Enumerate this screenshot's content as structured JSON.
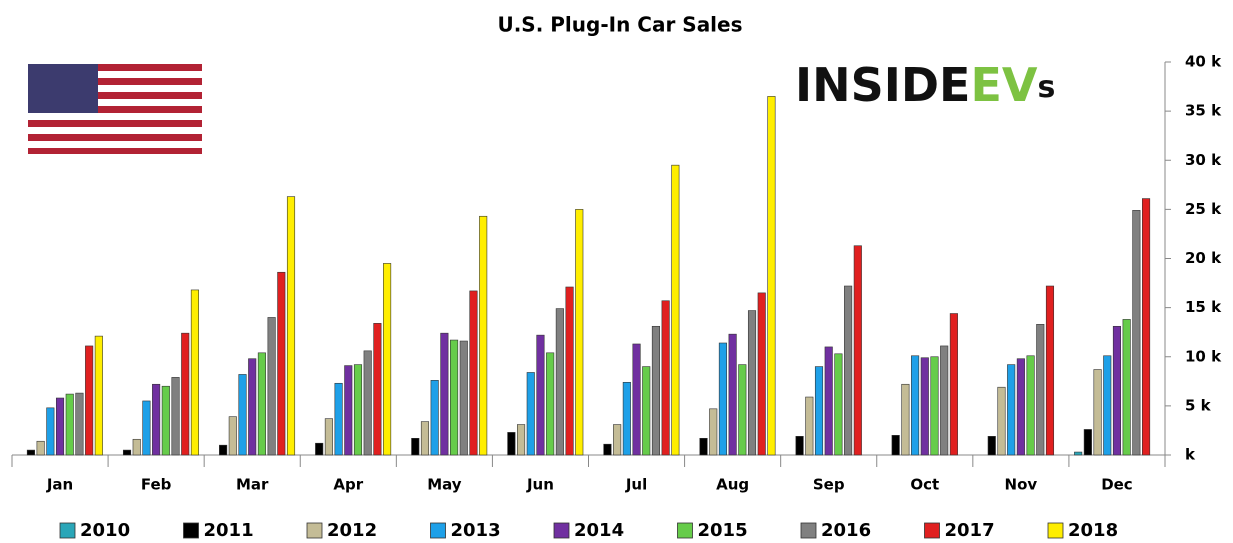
{
  "chart_data": {
    "type": "bar",
    "title": "U.S. Plug-In Car Sales",
    "logo": [
      "INSIDE",
      "EV",
      "s"
    ],
    "categories": [
      "Jan",
      "Feb",
      "Mar",
      "Apr",
      "May",
      "Jun",
      "Jul",
      "Aug",
      "Sep",
      "Oct",
      "Nov",
      "Dec"
    ],
    "series": [
      {
        "name": "2010",
        "color": "#2aa6b8",
        "values": [
          0,
          0,
          0,
          0,
          0,
          0,
          0,
          0,
          0,
          0,
          0,
          0.3
        ]
      },
      {
        "name": "2011",
        "color": "#000000",
        "values": [
          0.5,
          0.5,
          1.0,
          1.2,
          1.7,
          2.3,
          1.1,
          1.7,
          1.9,
          2.0,
          1.9,
          2.6
        ]
      },
      {
        "name": "2012",
        "color": "#c4bc96",
        "values": [
          1.4,
          1.6,
          3.9,
          3.7,
          3.4,
          3.1,
          3.1,
          4.7,
          5.9,
          7.2,
          6.9,
          8.7
        ]
      },
      {
        "name": "2013",
        "color": "#1ea0e8",
        "values": [
          4.8,
          5.5,
          8.2,
          7.3,
          7.6,
          8.4,
          7.4,
          11.4,
          9.0,
          10.1,
          9.2,
          10.1
        ]
      },
      {
        "name": "2014",
        "color": "#7030a0",
        "values": [
          5.8,
          7.2,
          9.8,
          9.1,
          12.4,
          12.2,
          11.3,
          12.3,
          11.0,
          9.9,
          9.8,
          13.1
        ]
      },
      {
        "name": "2015",
        "color": "#66cc4a",
        "values": [
          6.2,
          7.0,
          10.4,
          9.2,
          11.7,
          10.4,
          9.0,
          9.2,
          10.3,
          10.0,
          10.1,
          13.8
        ]
      },
      {
        "name": "2016",
        "color": "#808080",
        "values": [
          6.3,
          7.9,
          14.0,
          10.6,
          11.6,
          14.9,
          13.1,
          14.7,
          17.2,
          11.1,
          13.3,
          24.9
        ]
      },
      {
        "name": "2017",
        "color": "#e02020",
        "values": [
          11.1,
          12.4,
          18.6,
          13.4,
          16.7,
          17.1,
          15.7,
          16.5,
          21.3,
          14.4,
          17.2,
          26.1
        ]
      },
      {
        "name": "2018",
        "color": "#ffee00",
        "values": [
          12.1,
          16.8,
          26.3,
          19.5,
          24.3,
          25.0,
          29.5,
          36.5,
          null,
          null,
          null,
          null
        ]
      }
    ],
    "ylim": [
      0,
      40
    ],
    "yticks": [
      {
        "value": 0,
        "label": "k"
      },
      {
        "value": 5,
        "label": "5 k"
      },
      {
        "value": 10,
        "label": "10 k"
      },
      {
        "value": 15,
        "label": "15 k"
      },
      {
        "value": 20,
        "label": "20 k"
      },
      {
        "value": 25,
        "label": "25 k"
      },
      {
        "value": 30,
        "label": "30 k"
      },
      {
        "value": 35,
        "label": "35 k"
      },
      {
        "value": 40,
        "label": "40 k"
      }
    ],
    "grid": false,
    "legend": "bottom"
  }
}
